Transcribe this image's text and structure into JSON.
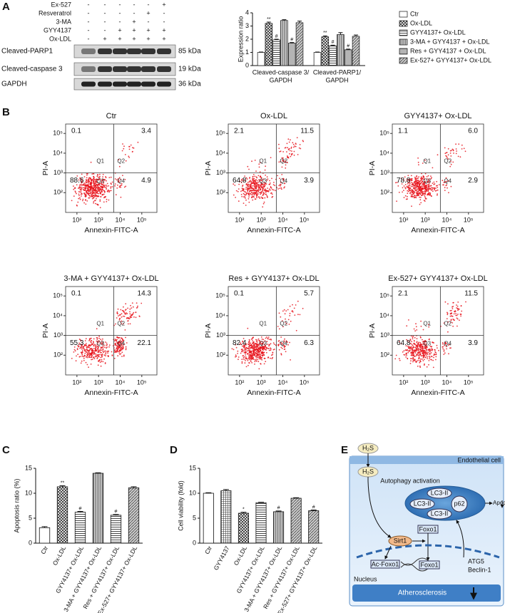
{
  "panels": [
    "A",
    "B",
    "C",
    "D",
    "E"
  ],
  "blot": {
    "treatments": [
      {
        "name": "Ex-527",
        "signs": [
          "-",
          "-",
          "-",
          "-",
          "-",
          "+"
        ]
      },
      {
        "name": "Resveratrol",
        "signs": [
          "-",
          "-",
          "-",
          "-",
          "+",
          "-"
        ]
      },
      {
        "name": "3-MA",
        "signs": [
          "-",
          "-",
          "-",
          "+",
          "-",
          "-"
        ]
      },
      {
        "name": "GYY4137",
        "signs": [
          "-",
          "-",
          "+",
          "+",
          "+",
          "+"
        ]
      },
      {
        "name": "Ox-LDL",
        "signs": [
          "-",
          "+",
          "+",
          "+",
          "+",
          "+"
        ]
      }
    ],
    "bands": [
      {
        "name": "Cleaved-PARP1",
        "size": "85 kDa"
      },
      {
        "name": "Cleaved-caspase 3",
        "size": "19 kDa"
      },
      {
        "name": "GAPDH",
        "size": "36 kDa"
      }
    ]
  },
  "chart_data": [
    {
      "type": "grouped_bar",
      "ylabel": "Expression ratio",
      "categories": [
        [
          "Cleaved-caspase 3/",
          "GAPDH"
        ],
        [
          "Cleaved-PARP1/",
          "GAPDH"
        ]
      ],
      "ylim": [
        0,
        4
      ],
      "yticks": [
        0,
        1,
        2,
        3,
        4
      ],
      "series": [
        {
          "name": "Ctr",
          "pattern": "none",
          "values": [
            1,
            1
          ],
          "errors": [
            0.03,
            0.03
          ],
          "sig": [
            null,
            null
          ]
        },
        {
          "name": "Ox-LDL",
          "pattern": "crosshatch",
          "values": [
            3.2,
            2.18
          ],
          "errors": [
            0.1,
            0.07
          ],
          "sig": [
            "**",
            "**"
          ]
        },
        {
          "name": "GYY4137+ Ox-LDL",
          "pattern": "horizontal",
          "values": [
            1.95,
            1.5
          ],
          "errors": [
            0.05,
            0.05
          ],
          "sig": [
            "#",
            "#"
          ]
        },
        {
          "name": "3-MA + GYY4137 + Ox-LDL",
          "pattern": "vertical",
          "values": [
            3.42,
            2.35
          ],
          "errors": [
            0.06,
            0.15
          ],
          "sig": [
            null,
            null
          ]
        },
        {
          "name": "Res + GYY4137 + Ox-LDL",
          "pattern": "dense",
          "values": [
            1.7,
            1.2
          ],
          "errors": [
            0.05,
            0.05
          ],
          "sig": [
            "#",
            "#"
          ]
        },
        {
          "name": "Ex-527+ GYY4137+ Ox-LDL",
          "pattern": "diagonal",
          "values": [
            3.25,
            2.22
          ],
          "errors": [
            0.12,
            0.1
          ],
          "sig": [
            null,
            null
          ]
        }
      ]
    },
    {
      "type": "flow",
      "title": "Ctr",
      "xlabel": "Annexin-FITC-A",
      "ylabel": "PI-A",
      "xscale": "log",
      "yscale": "log",
      "xlim": [
        30,
        500000
      ],
      "ylim": [
        10,
        300000
      ],
      "xticks": [
        {
          "value": 100,
          "label": "10²"
        },
        {
          "value": 1000,
          "label": "10³"
        },
        {
          "value": 10000,
          "label": "10⁴"
        },
        {
          "value": 100000,
          "label": "10⁵"
        }
      ],
      "yticks": [
        {
          "value": 100,
          "label": "10²"
        },
        {
          "value": 1000,
          "label": "10³"
        },
        {
          "value": 10000,
          "label": "10⁴"
        },
        {
          "value": 100000,
          "label": "10⁵"
        }
      ],
      "gates": {
        "x": 5000,
        "y": 1000
      },
      "quadrant_names": [
        "Q1",
        "Q2",
        "Q3",
        "Q4"
      ],
      "values": [
        0.1,
        3.4,
        88.6,
        4.9
      ],
      "value_labels": [
        "0.1",
        "3.4",
        "88.6",
        "4.9"
      ]
    },
    {
      "type": "flow",
      "title": "Ox-LDL",
      "xlabel": "Annexin-FITC-A",
      "ylabel": "PI-A",
      "xscale": "log",
      "yscale": "log",
      "xlim": [
        30,
        500000
      ],
      "ylim": [
        10,
        300000
      ],
      "xticks": [
        {
          "value": 100,
          "label": "10²"
        },
        {
          "value": 1000,
          "label": "10³"
        },
        {
          "value": 10000,
          "label": "10⁴"
        },
        {
          "value": 100000,
          "label": "10⁵"
        }
      ],
      "yticks": [
        {
          "value": 100,
          "label": "10²"
        },
        {
          "value": 1000,
          "label": "10³"
        },
        {
          "value": 10000,
          "label": "10⁴"
        },
        {
          "value": 100000,
          "label": "10⁵"
        }
      ],
      "gates": {
        "x": 5000,
        "y": 1000
      },
      "quadrant_names": [
        "Q1",
        "Q2",
        "Q3",
        "Q4"
      ],
      "values": [
        2.1,
        11.5,
        64.8,
        3.9
      ],
      "value_labels": [
        "2.1",
        "11.5",
        "64.8",
        "3.9"
      ]
    },
    {
      "type": "flow",
      "title": "GYY4137+ Ox-LDL",
      "xlabel": "Annexin-FITC-A",
      "ylabel": "PI-A",
      "xscale": "log",
      "yscale": "log",
      "xlim": [
        30,
        500000
      ],
      "ylim": [
        10,
        300000
      ],
      "xticks": [
        {
          "value": 100,
          "label": "10²"
        },
        {
          "value": 1000,
          "label": "10³"
        },
        {
          "value": 10000,
          "label": "10⁴"
        },
        {
          "value": 100000,
          "label": "10⁵"
        }
      ],
      "yticks": [
        {
          "value": 100,
          "label": "10²"
        },
        {
          "value": 1000,
          "label": "10³"
        },
        {
          "value": 10000,
          "label": "10⁴"
        },
        {
          "value": 100000,
          "label": "10⁵"
        }
      ],
      "gates": {
        "x": 5000,
        "y": 1000
      },
      "quadrant_names": [
        "Q1",
        "Q2",
        "Q3",
        "Q4"
      ],
      "values": [
        1.1,
        6,
        78.8,
        2.9
      ],
      "value_labels": [
        "1.1",
        "6.0",
        "78.8",
        "2.9"
      ]
    },
    {
      "type": "flow",
      "title": "3-MA + GYY4137+ Ox-LDL",
      "xlabel": "Annexin-FITC-A",
      "ylabel": "PI-A",
      "xscale": "log",
      "yscale": "log",
      "xlim": [
        30,
        500000
      ],
      "ylim": [
        10,
        300000
      ],
      "xticks": [
        {
          "value": 100,
          "label": "10²"
        },
        {
          "value": 1000,
          "label": "10³"
        },
        {
          "value": 10000,
          "label": "10⁴"
        },
        {
          "value": 100000,
          "label": "10⁵"
        }
      ],
      "yticks": [
        {
          "value": 100,
          "label": "10²"
        },
        {
          "value": 1000,
          "label": "10³"
        },
        {
          "value": 10000,
          "label": "10⁴"
        },
        {
          "value": 100000,
          "label": "10⁵"
        }
      ],
      "gates": {
        "x": 5000,
        "y": 1000
      },
      "quadrant_names": [
        "Q1",
        "Q2",
        "Q3",
        "Q4"
      ],
      "values": [
        0.1,
        14.3,
        55.3,
        22.1
      ],
      "value_labels": [
        "0.1",
        "14.3",
        "55.3",
        "22.1"
      ]
    },
    {
      "type": "flow",
      "title": "Res + GYY4137+ Ox-LDL",
      "xlabel": "Annexin-FITC-A",
      "ylabel": "PI-A",
      "xscale": "log",
      "yscale": "log",
      "xlim": [
        30,
        500000
      ],
      "ylim": [
        10,
        300000
      ],
      "xticks": [
        {
          "value": 100,
          "label": "10²"
        },
        {
          "value": 1000,
          "label": "10³"
        },
        {
          "value": 10000,
          "label": "10⁴"
        },
        {
          "value": 100000,
          "label": "10⁵"
        }
      ],
      "yticks": [
        {
          "value": 100,
          "label": "10²"
        },
        {
          "value": 1000,
          "label": "10³"
        },
        {
          "value": 10000,
          "label": "10⁴"
        },
        {
          "value": 100000,
          "label": "10⁵"
        }
      ],
      "gates": {
        "x": 5000,
        "y": 1000
      },
      "quadrant_names": [
        "Q1",
        "Q2",
        "Q3",
        "Q4"
      ],
      "values": [
        0.1,
        5.7,
        82.4,
        6.3
      ],
      "value_labels": [
        "0.1",
        "5.7",
        "82.4",
        "6.3"
      ]
    },
    {
      "type": "flow",
      "title": "Ex-527+ GYY4137+ Ox-LDL",
      "xlabel": "Annexin-FITC-A",
      "ylabel": "PI-A",
      "xscale": "log",
      "yscale": "log",
      "xlim": [
        30,
        500000
      ],
      "ylim": [
        10,
        300000
      ],
      "xticks": [
        {
          "value": 100,
          "label": "10²"
        },
        {
          "value": 1000,
          "label": "10³"
        },
        {
          "value": 10000,
          "label": "10⁴"
        },
        {
          "value": 100000,
          "label": "10⁵"
        }
      ],
      "yticks": [
        {
          "value": 100,
          "label": "10²"
        },
        {
          "value": 1000,
          "label": "10³"
        },
        {
          "value": 10000,
          "label": "10⁴"
        },
        {
          "value": 100000,
          "label": "10⁵"
        }
      ],
      "gates": {
        "x": 5000,
        "y": 1000
      },
      "quadrant_names": [
        "Q1",
        "Q2",
        "Q3",
        "Q4"
      ],
      "values": [
        2.1,
        11.5,
        64.8,
        3.9
      ],
      "value_labels": [
        "2.1",
        "11.5",
        "64.8",
        "3.9"
      ]
    },
    {
      "type": "bar",
      "ylabel": "Apoptosis ratio (%)",
      "categories": [
        "Ctr",
        "Ox-LDL",
        "GYY4137+ Ox-LDL",
        "3-MA + GYY4137+ Ox-LDL",
        "Res + GYY4137+ Ox-LDL",
        "Ex-527+ GYY4137+ Ox-LDL"
      ],
      "values": [
        3.1,
        11.3,
        6.2,
        14,
        5.6,
        11.1
      ],
      "errors": [
        0.2,
        0.2,
        0.15,
        0.1,
        0.15,
        0.2
      ],
      "sig": [
        null,
        "**",
        "#",
        null,
        "#",
        null
      ],
      "patterns": [
        "none",
        "crosshatch",
        "horizontal",
        "vertical",
        "horizontal",
        "diagonal"
      ],
      "ylim": [
        0,
        15
      ],
      "yticks": [
        0,
        5,
        10,
        15
      ]
    },
    {
      "type": "bar",
      "ylabel": "Cell viability (fold)",
      "categories": [
        "Ctr",
        "GYY4137",
        "Ox-LDL",
        "GYY4137+ Ox-LDL",
        "3-MA + GYY4137+ Ox-LDL",
        "Res + GYY4137+ Ox-LDL",
        "Ex-527+ GYY4137+ Ox-LDL"
      ],
      "values": [
        10,
        10.5,
        6,
        8.1,
        6.3,
        9,
        6.5
      ],
      "errors": [
        0.1,
        0.25,
        0.2,
        0.1,
        0.15,
        0.1,
        0.15
      ],
      "sig": [
        null,
        null,
        "*",
        null,
        "#",
        null,
        "#"
      ],
      "patterns": [
        "none",
        "grid",
        "crosshatch",
        "horizontal",
        "vertical",
        "diagonal",
        "diagonal"
      ],
      "ylim": [
        0,
        15
      ],
      "yticks": [
        0,
        5,
        10,
        15
      ]
    }
  ],
  "diagram": {
    "h2s_outer": "H₂S",
    "cell": "Endothelial cell",
    "h2s_inner": "H₂S",
    "process": "Autophagy activation",
    "lc3": [
      "LC3-II",
      "LC3-II",
      "LC3-II"
    ],
    "p62": "p62",
    "apoptosis": "Apoptosis",
    "foxo1_cyto": "Foxo1",
    "sirt1": "Sirt1",
    "ac_foxo1": "Ac-Foxo1",
    "foxo1_nuc": "Foxo1",
    "genes": [
      "ATG5",
      "Beclin-1"
    ],
    "nucleus": "Nucleus",
    "outcome": "Atherosclerosis"
  }
}
